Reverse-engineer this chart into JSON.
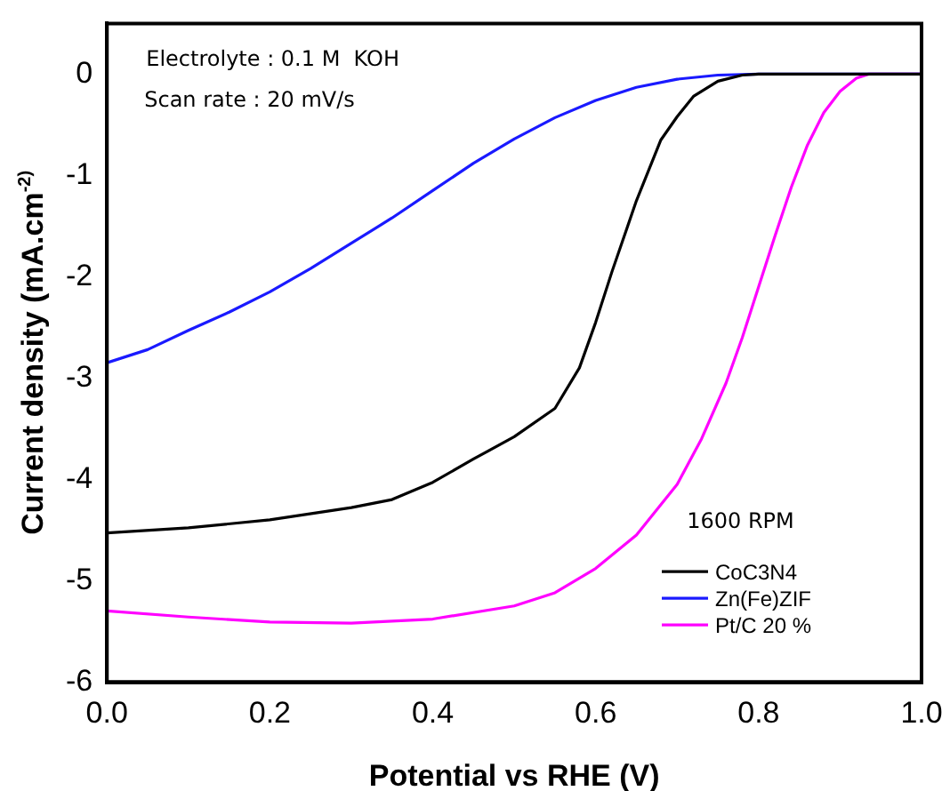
{
  "chart_data": {
    "type": "line",
    "xlabel": "Potential vs RHE (V)",
    "ylabel": "Current density (mA.cm$^{-2}$)",
    "xlim": [
      0,
      1
    ],
    "ylim": [
      -6,
      0.5
    ],
    "xticks": [
      {
        "value": 0,
        "label": "0.0"
      },
      0.2,
      0.4,
      0.6,
      0.8,
      {
        "value": 1,
        "label": "1.0"
      }
    ],
    "yticks": [
      -6,
      -5,
      -4,
      -3,
      -2,
      -1,
      0
    ],
    "grid": false,
    "legend": "bottom right",
    "marker": "none",
    "line_style": "solid",
    "annotations": [
      "Electrolyte : 0.1 M  KOH",
      "Scan rate : 20 mV/s",
      "1600 RPM"
    ],
    "series": [
      {
        "name": "CoC3N4",
        "color": "#000000",
        "x": [
          0,
          0.1,
          0.2,
          0.3,
          0.35,
          0.4,
          0.45,
          0.5,
          0.55,
          0.58,
          0.6,
          0.62,
          0.65,
          0.68,
          0.7,
          0.72,
          0.75,
          0.78,
          0.8,
          0.9,
          1.0
        ],
        "values": [
          -4.53,
          -4.48,
          -4.4,
          -4.28,
          -4.2,
          -4.03,
          -3.8,
          -3.58,
          -3.3,
          -2.9,
          -2.45,
          -1.95,
          -1.25,
          -0.65,
          -0.42,
          -0.22,
          -0.07,
          -0.01,
          0,
          0,
          0
        ]
      },
      {
        "name": "Zn(Fe)ZIF",
        "color": "#1a1aff",
        "x": [
          0,
          0.05,
          0.1,
          0.15,
          0.2,
          0.25,
          0.3,
          0.35,
          0.4,
          0.45,
          0.5,
          0.55,
          0.6,
          0.65,
          0.7,
          0.75,
          0.8,
          0.9,
          1.0
        ],
        "values": [
          -2.85,
          -2.72,
          -2.53,
          -2.35,
          -2.15,
          -1.92,
          -1.67,
          -1.42,
          -1.15,
          -0.88,
          -0.64,
          -0.43,
          -0.26,
          -0.13,
          -0.05,
          -0.01,
          0,
          0,
          0
        ]
      },
      {
        "name": "Pt/C 20 %",
        "color": "#ff00ff",
        "x": [
          0,
          0.1,
          0.2,
          0.3,
          0.4,
          0.5,
          0.55,
          0.6,
          0.65,
          0.7,
          0.73,
          0.76,
          0.78,
          0.8,
          0.82,
          0.84,
          0.86,
          0.88,
          0.9,
          0.92,
          0.935,
          1.0
        ],
        "values": [
          -5.3,
          -5.36,
          -5.41,
          -5.42,
          -5.38,
          -5.25,
          -5.12,
          -4.88,
          -4.55,
          -4.05,
          -3.6,
          -3.05,
          -2.6,
          -2.1,
          -1.6,
          -1.12,
          -0.7,
          -0.38,
          -0.17,
          -0.04,
          0,
          0
        ]
      }
    ]
  }
}
